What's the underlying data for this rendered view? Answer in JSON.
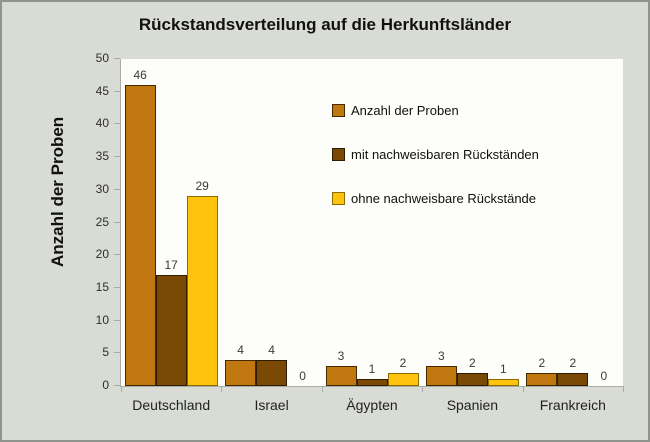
{
  "chart_data": {
    "type": "bar",
    "title": "Rückstandsverteilung auf die Herkunftsländer",
    "ylabel": "Anzahl der Proben",
    "xlabel": "",
    "categories": [
      "Deutschland",
      "Israel",
      "Ägypten",
      "Spanien",
      "Frankreich"
    ],
    "series": [
      {
        "name": "Anzahl der Proben",
        "values": [
          46,
          4,
          3,
          3,
          2
        ],
        "color": "#C0770F",
        "border_color": "#452A00"
      },
      {
        "name": "mit nachweisbaren Rückständen",
        "values": [
          17,
          4,
          1,
          2,
          2
        ],
        "color": "#7A4A05",
        "border_color": "#2E1C00"
      },
      {
        "name": "ohne nachweisbare Rückstände",
        "values": [
          29,
          0,
          2,
          1,
          0
        ],
        "color": "#FFC30D",
        "border_color": "#8A6D00"
      }
    ],
    "ylim": [
      0,
      50
    ],
    "ytick_step": 5,
    "grid": false,
    "legend_position": "inside-top-right",
    "bar_value_labels": true
  },
  "colors": {
    "background": "#D9DCD5",
    "plot_background": "#FDFEF9",
    "frame_border": "#8F948C",
    "axis": "#A9ABA6",
    "text": "#1F1F1F"
  }
}
